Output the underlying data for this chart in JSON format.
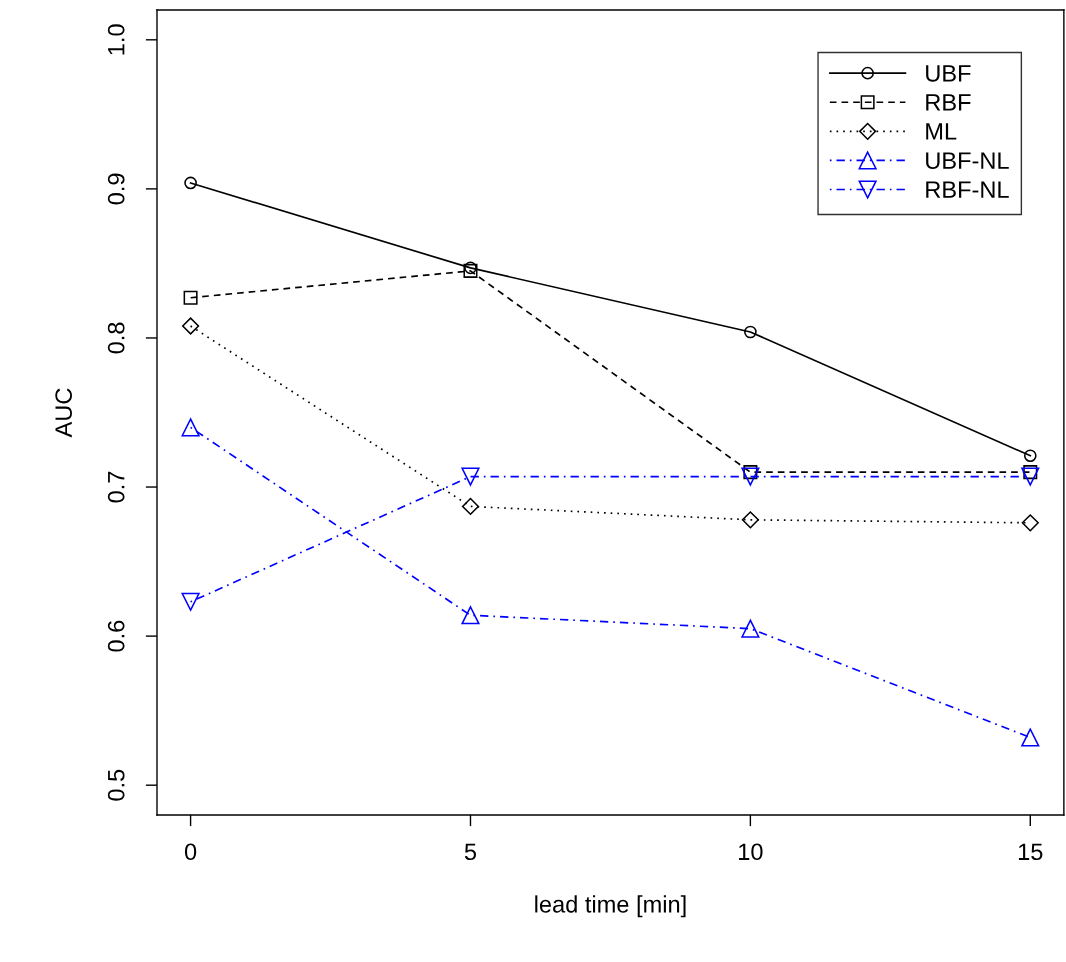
{
  "chart_data": {
    "type": "line",
    "xlabel": "lead time [min]",
    "ylabel": "AUC",
    "x": [
      0,
      5,
      10,
      15
    ],
    "series": [
      {
        "name": "UBF",
        "color": "#000000",
        "values": [
          0.904,
          0.847,
          0.804,
          0.721
        ],
        "marker": "circle",
        "line_style": "solid"
      },
      {
        "name": "RBF",
        "color": "#000000",
        "values": [
          0.827,
          0.845,
          0.71,
          0.71
        ],
        "marker": "square",
        "line_style": "dashed"
      },
      {
        "name": "ML",
        "color": "#000000",
        "values": [
          0.808,
          0.687,
          0.678,
          0.676
        ],
        "marker": "diamond",
        "line_style": "dotted"
      },
      {
        "name": "UBF-NL",
        "color": "#0000ff",
        "values": [
          0.74,
          0.614,
          0.605,
          0.532
        ],
        "marker": "triangle",
        "line_style": "dashdot"
      },
      {
        "name": "RBF-NL",
        "color": "#0000ff",
        "values": [
          0.623,
          0.707,
          0.707,
          0.707
        ],
        "marker": "triangle_down",
        "line_style": "dashdot"
      }
    ],
    "xlim": [
      -0.6,
      15.6
    ],
    "ylim": [
      0.48,
      1.02
    ],
    "xticks": [
      0,
      5,
      10,
      15
    ],
    "yticks": [
      0.5,
      0.6,
      0.7,
      0.8,
      0.9,
      {
        "value": 1.0,
        "label": "1.0"
      }
    ],
    "grid": false,
    "legend": "top right"
  }
}
